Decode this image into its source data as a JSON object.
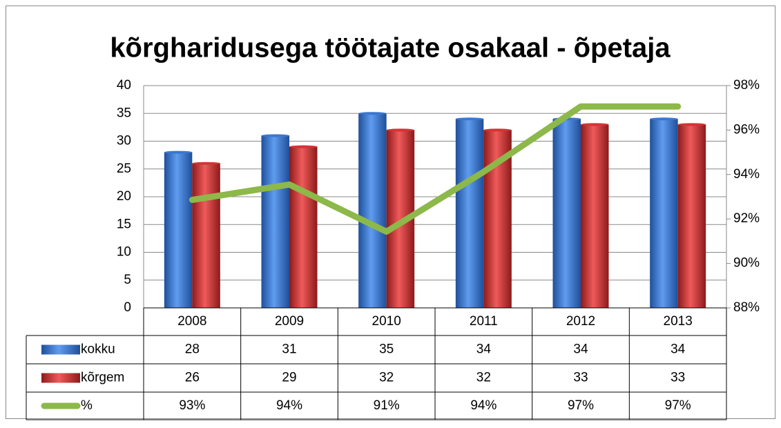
{
  "chart_data": {
    "type": "bar",
    "title": "kõrgharidusega töötajate osakaal - õpetaja",
    "categories": [
      "2008",
      "2009",
      "2010",
      "2011",
      "2012",
      "2013"
    ],
    "series": [
      {
        "name": "kokku",
        "color": "#3a78d0",
        "values": [
          28,
          31,
          35,
          34,
          34,
          34
        ]
      },
      {
        "name": "kõrgem",
        "color": "#d23434",
        "values": [
          26,
          29,
          32,
          32,
          33,
          33
        ]
      },
      {
        "name": "%",
        "color": "#8db84a",
        "type": "line",
        "axis": "y2",
        "values": [
          92.86,
          93.55,
          91.43,
          94.12,
          97.06,
          97.06
        ],
        "value_labels": [
          "93%",
          "94%",
          "91%",
          "94%",
          "97%",
          "97%"
        ]
      }
    ],
    "ylim": [
      0,
      40
    ],
    "yticks": [
      0,
      5,
      10,
      15,
      20,
      25,
      30,
      35,
      40
    ],
    "y2lim": [
      88,
      98
    ],
    "y2ticks": [
      {
        "value": 88,
        "label": "88%"
      },
      {
        "value": 90,
        "label": "90%"
      },
      {
        "value": 92,
        "label": "92%"
      },
      {
        "value": 94,
        "label": "94%"
      },
      {
        "value": 96,
        "label": "96%"
      },
      {
        "value": 98,
        "label": "98%"
      }
    ],
    "grid": true,
    "data_table": true
  }
}
